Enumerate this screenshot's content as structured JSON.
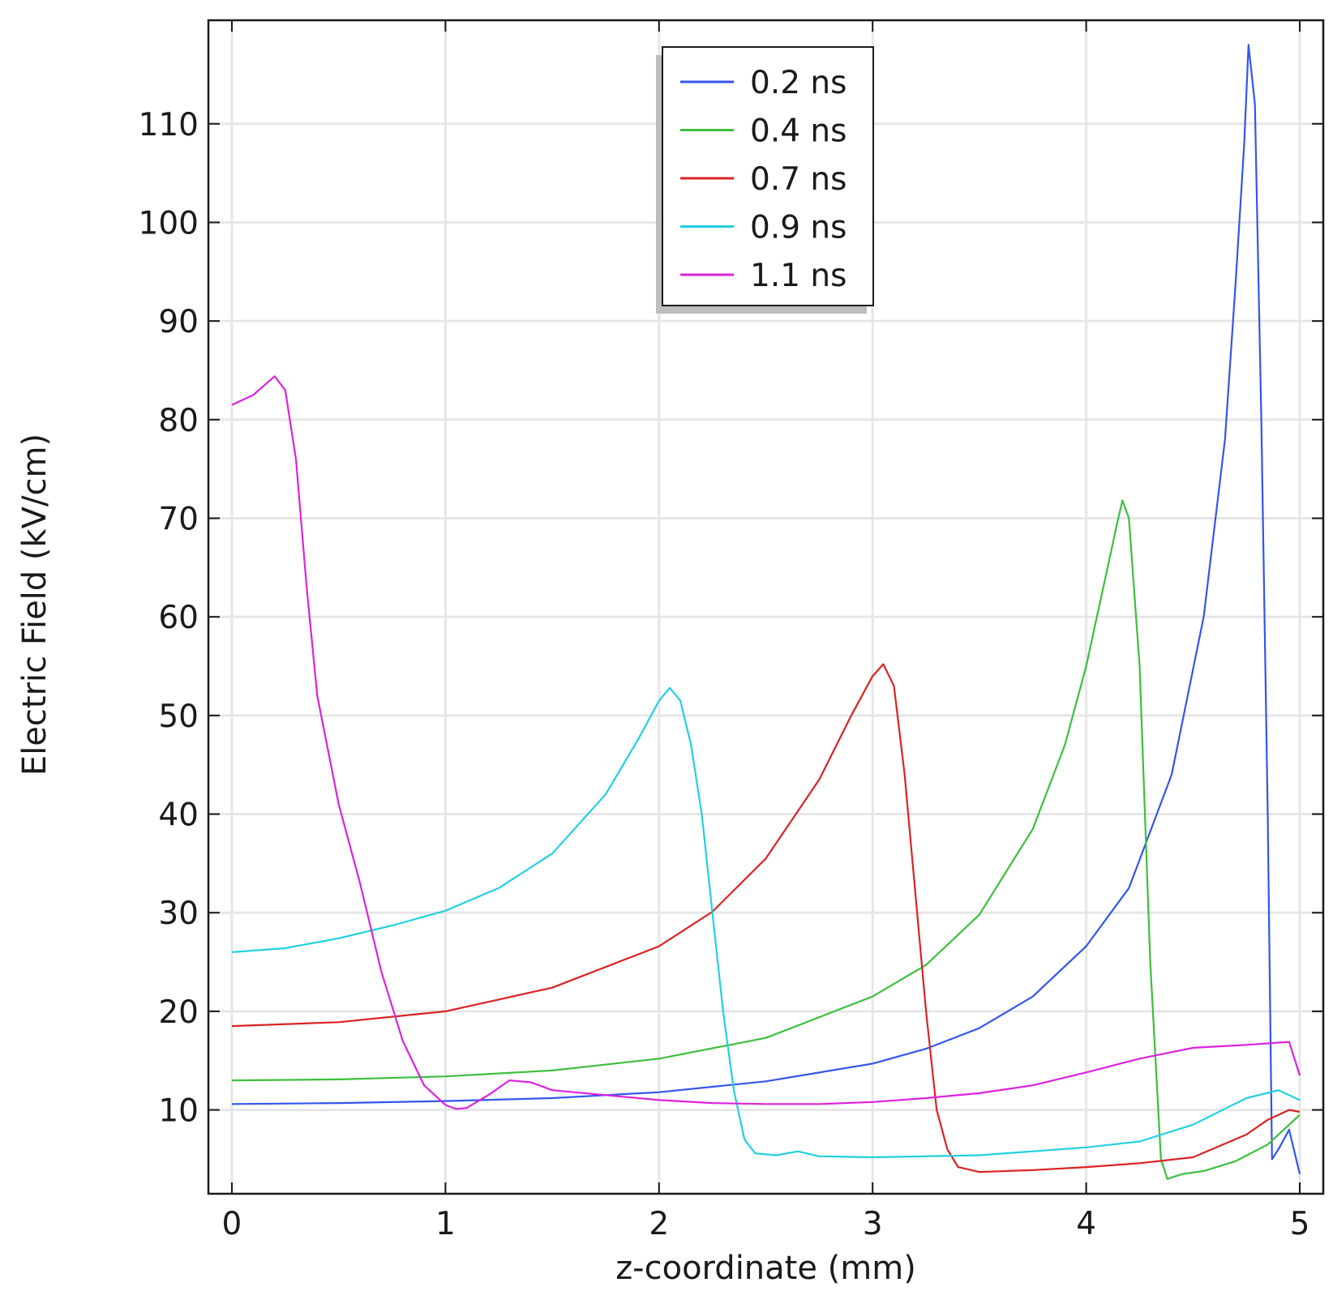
{
  "chart_data": {
    "type": "line",
    "title": "",
    "xlabel": "z-coordinate (mm)",
    "ylabel": "Electric Field (kV/cm)",
    "xlim": [
      -0.11,
      5.11
    ],
    "ylim": [
      1.5,
      120.5
    ],
    "xticks": [
      0,
      1,
      2,
      3,
      4,
      5
    ],
    "yticks": [
      10,
      20,
      30,
      40,
      50,
      60,
      70,
      80,
      90,
      100,
      110
    ],
    "grid": true,
    "legend_position": "top-center",
    "series": [
      {
        "name": "0.2 ns",
        "color": "#3355ee",
        "x": [
          0,
          0.5,
          1,
          1.5,
          2,
          2.5,
          3,
          3.25,
          3.5,
          3.75,
          4,
          4.2,
          4.4,
          4.55,
          4.65,
          4.7,
          4.74,
          4.76,
          4.79,
          4.82,
          4.85,
          4.87,
          4.9,
          4.95,
          5.0
        ],
        "y": [
          10.6,
          10.7,
          10.9,
          11.2,
          11.8,
          12.9,
          14.7,
          16.2,
          18.3,
          21.5,
          26.6,
          32.5,
          44,
          60,
          78,
          94,
          108,
          118,
          112,
          80,
          40,
          5,
          6,
          8,
          3.5
        ]
      },
      {
        "name": "0.4 ns",
        "color": "#3cbf3c",
        "x": [
          0,
          0.5,
          1,
          1.5,
          2,
          2.5,
          3,
          3.25,
          3.5,
          3.75,
          3.9,
          4.0,
          4.1,
          4.15,
          4.17,
          4.2,
          4.25,
          4.3,
          4.35,
          4.38,
          4.45,
          4.55,
          4.7,
          4.85,
          5.0
        ],
        "y": [
          13.0,
          13.1,
          13.4,
          14.0,
          15.2,
          17.3,
          21.5,
          24.7,
          29.8,
          38.5,
          47,
          55,
          65,
          70,
          71.8,
          70,
          55,
          25,
          5,
          3,
          3.5,
          3.8,
          4.8,
          6.5,
          9.5
        ]
      },
      {
        "name": "0.7 ns",
        "color": "#dd2222",
        "x": [
          0,
          0.5,
          1,
          1.5,
          2,
          2.25,
          2.5,
          2.75,
          2.9,
          3.0,
          3.05,
          3.1,
          3.15,
          3.2,
          3.25,
          3.3,
          3.35,
          3.4,
          3.5,
          3.75,
          4.0,
          4.25,
          4.5,
          4.75,
          4.85,
          4.95,
          5.0
        ],
        "y": [
          18.5,
          18.9,
          20.0,
          22.4,
          26.6,
          30.1,
          35.5,
          43.5,
          50,
          54,
          55.2,
          53,
          44,
          32,
          20,
          10,
          6,
          4.2,
          3.7,
          3.9,
          4.2,
          4.6,
          5.2,
          7.5,
          9,
          10,
          9.8
        ]
      },
      {
        "name": "0.9 ns",
        "color": "#22d0e0",
        "x": [
          0,
          0.25,
          0.5,
          0.75,
          1,
          1.25,
          1.5,
          1.75,
          1.9,
          2.0,
          2.05,
          2.1,
          2.15,
          2.2,
          2.25,
          2.3,
          2.35,
          2.4,
          2.45,
          2.55,
          2.65,
          2.75,
          3.0,
          3.5,
          4.0,
          4.25,
          4.5,
          4.75,
          4.9,
          5.0
        ],
        "y": [
          26.0,
          26.4,
          27.4,
          28.7,
          30.2,
          32.5,
          36.0,
          42.0,
          47.5,
          51.5,
          52.8,
          51.5,
          47,
          40,
          30,
          20,
          12,
          7,
          5.6,
          5.4,
          5.8,
          5.3,
          5.2,
          5.4,
          6.2,
          6.8,
          8.5,
          11.2,
          12,
          11
        ]
      },
      {
        "name": "1.1 ns",
        "color": "#dd22dd",
        "x": [
          0,
          0.1,
          0.2,
          0.25,
          0.3,
          0.35,
          0.4,
          0.5,
          0.6,
          0.7,
          0.8,
          0.9,
          1.0,
          1.05,
          1.1,
          1.2,
          1.3,
          1.4,
          1.5,
          1.75,
          2.0,
          2.25,
          2.5,
          2.75,
          3.0,
          3.25,
          3.5,
          3.75,
          4.0,
          4.25,
          4.5,
          4.75,
          4.95,
          5.0
        ],
        "y": [
          81.5,
          82.5,
          84.4,
          83,
          76,
          63,
          52,
          41,
          33,
          24,
          17,
          12.5,
          10.5,
          10.1,
          10.2,
          11.5,
          13,
          12.8,
          12,
          11.5,
          11,
          10.7,
          10.6,
          10.6,
          10.8,
          11.2,
          11.7,
          12.5,
          13.8,
          15.2,
          16.3,
          16.6,
          16.9,
          13.5
        ]
      }
    ]
  }
}
